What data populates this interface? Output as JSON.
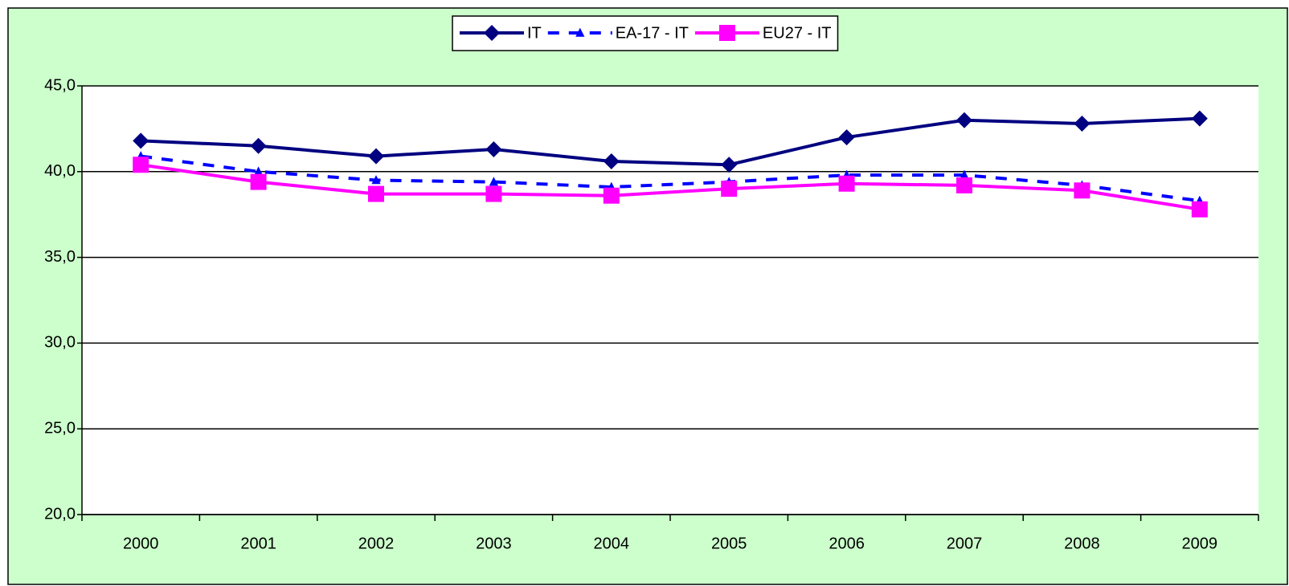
{
  "chart_data": {
    "type": "line",
    "categories": [
      "2000",
      "2001",
      "2002",
      "2003",
      "2004",
      "2005",
      "2006",
      "2007",
      "2008",
      "2009"
    ],
    "series": [
      {
        "name": "IT",
        "color": "#000080",
        "marker": "diamond",
        "dashed": false,
        "values": [
          41.8,
          41.5,
          40.9,
          41.3,
          40.6,
          40.4,
          42.0,
          43.0,
          42.8,
          43.1
        ]
      },
      {
        "name": "EA-17 - IT",
        "color": "#0000ff",
        "marker": "triangle",
        "dashed": true,
        "values": [
          40.9,
          40.0,
          39.5,
          39.4,
          39.1,
          39.4,
          39.8,
          39.8,
          39.2,
          38.3
        ]
      },
      {
        "name": "EU27 - IT",
        "color": "#ff00ff",
        "marker": "square",
        "dashed": false,
        "values": [
          40.4,
          39.4,
          38.7,
          38.7,
          38.6,
          39.0,
          39.3,
          39.2,
          38.9,
          37.8
        ]
      }
    ],
    "ylim": [
      20,
      45
    ],
    "yticks": [
      {
        "value": 20,
        "label": "20,0"
      },
      {
        "value": 25,
        "label": "25,0"
      },
      {
        "value": 30,
        "label": "30,0"
      },
      {
        "value": 35,
        "label": "35,0"
      },
      {
        "value": 40,
        "label": "40,0"
      },
      {
        "value": 45,
        "label": "45,0"
      }
    ],
    "grid": true,
    "legend": "top"
  }
}
